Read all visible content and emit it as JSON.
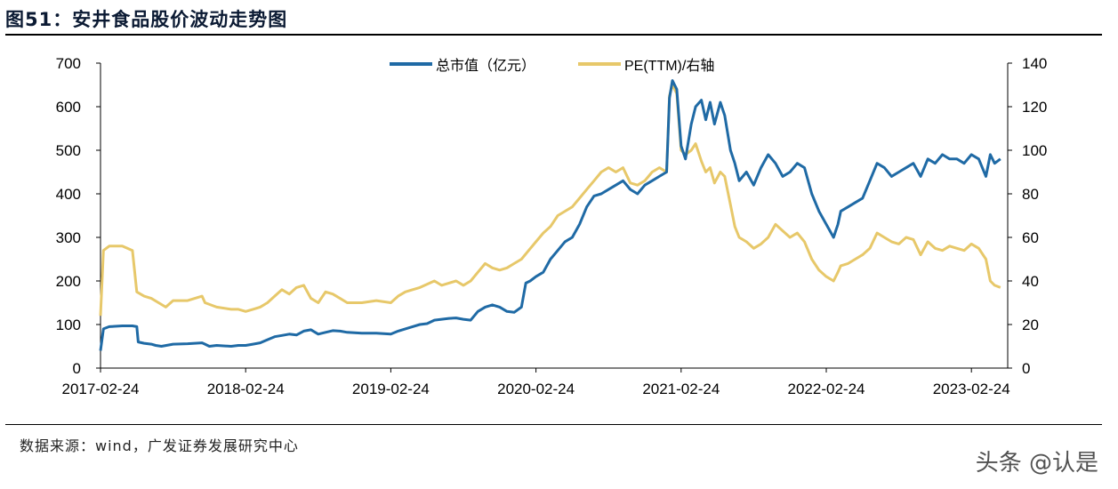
{
  "header": {
    "title": "图51：安井食品股价波动走势图"
  },
  "footer": {
    "source": "数据来源：wind，广发证券发展研究中心",
    "watermark": "头条 @认是"
  },
  "colors": {
    "market_cap": "#1f6aa5",
    "pe": "#e7c86a"
  },
  "chart_data": {
    "type": "line",
    "title": "",
    "x_tick_labels": [
      "2017-02-24",
      "2018-02-24",
      "2019-02-24",
      "2020-02-24",
      "2021-02-24",
      "2022-02-24",
      "2023-02-24"
    ],
    "x_range": [
      0,
      6.25
    ],
    "y_left": {
      "ticks": [
        "0",
        "100",
        "200",
        "300",
        "400",
        "500",
        "600",
        "700"
      ],
      "range": [
        0,
        700
      ]
    },
    "y_right": {
      "ticks": [
        "0",
        "20",
        "40",
        "60",
        "80",
        "100",
        "120",
        "140"
      ],
      "range": [
        0,
        140
      ]
    },
    "legend_position": "top-center",
    "series": [
      {
        "name": "总市值（亿元）",
        "axis": "left",
        "points": [
          [
            0.0,
            40
          ],
          [
            0.02,
            90
          ],
          [
            0.06,
            95
          ],
          [
            0.15,
            97
          ],
          [
            0.22,
            97
          ],
          [
            0.25,
            95
          ],
          [
            0.26,
            60
          ],
          [
            0.3,
            57
          ],
          [
            0.35,
            55
          ],
          [
            0.38,
            52
          ],
          [
            0.42,
            50
          ],
          [
            0.5,
            55
          ],
          [
            0.6,
            56
          ],
          [
            0.7,
            58
          ],
          [
            0.72,
            55
          ],
          [
            0.75,
            50
          ],
          [
            0.8,
            52
          ],
          [
            0.9,
            50
          ],
          [
            0.95,
            52
          ],
          [
            1.0,
            52
          ],
          [
            1.05,
            55
          ],
          [
            1.1,
            58
          ],
          [
            1.15,
            65
          ],
          [
            1.2,
            72
          ],
          [
            1.25,
            75
          ],
          [
            1.3,
            78
          ],
          [
            1.35,
            76
          ],
          [
            1.4,
            85
          ],
          [
            1.45,
            88
          ],
          [
            1.5,
            78
          ],
          [
            1.55,
            82
          ],
          [
            1.6,
            86
          ],
          [
            1.65,
            85
          ],
          [
            1.7,
            82
          ],
          [
            1.8,
            80
          ],
          [
            1.9,
            80
          ],
          [
            2.0,
            78
          ],
          [
            2.05,
            85
          ],
          [
            2.1,
            90
          ],
          [
            2.15,
            95
          ],
          [
            2.2,
            100
          ],
          [
            2.25,
            102
          ],
          [
            2.3,
            110
          ],
          [
            2.35,
            112
          ],
          [
            2.4,
            114
          ],
          [
            2.45,
            115
          ],
          [
            2.5,
            112
          ],
          [
            2.55,
            110
          ],
          [
            2.6,
            130
          ],
          [
            2.65,
            140
          ],
          [
            2.7,
            145
          ],
          [
            2.75,
            140
          ],
          [
            2.8,
            130
          ],
          [
            2.85,
            128
          ],
          [
            2.9,
            140
          ],
          [
            2.93,
            195
          ],
          [
            2.96,
            200
          ],
          [
            3.0,
            210
          ],
          [
            3.05,
            220
          ],
          [
            3.1,
            250
          ],
          [
            3.15,
            270
          ],
          [
            3.2,
            290
          ],
          [
            3.25,
            300
          ],
          [
            3.3,
            330
          ],
          [
            3.35,
            370
          ],
          [
            3.4,
            395
          ],
          [
            3.45,
            400
          ],
          [
            3.5,
            410
          ],
          [
            3.55,
            420
          ],
          [
            3.6,
            430
          ],
          [
            3.65,
            410
          ],
          [
            3.7,
            400
          ],
          [
            3.75,
            420
          ],
          [
            3.8,
            430
          ],
          [
            3.85,
            440
          ],
          [
            3.9,
            450
          ],
          [
            3.92,
            620
          ],
          [
            3.94,
            660
          ],
          [
            3.97,
            640
          ],
          [
            4.0,
            510
          ],
          [
            4.03,
            480
          ],
          [
            4.07,
            560
          ],
          [
            4.1,
            600
          ],
          [
            4.14,
            615
          ],
          [
            4.17,
            570
          ],
          [
            4.2,
            610
          ],
          [
            4.23,
            560
          ],
          [
            4.27,
            610
          ],
          [
            4.3,
            580
          ],
          [
            4.34,
            500
          ],
          [
            4.37,
            470
          ],
          [
            4.4,
            430
          ],
          [
            4.45,
            450
          ],
          [
            4.5,
            420
          ],
          [
            4.55,
            460
          ],
          [
            4.6,
            490
          ],
          [
            4.65,
            470
          ],
          [
            4.7,
            440
          ],
          [
            4.75,
            450
          ],
          [
            4.8,
            470
          ],
          [
            4.85,
            460
          ],
          [
            4.9,
            400
          ],
          [
            4.95,
            360
          ],
          [
            5.0,
            330
          ],
          [
            5.05,
            300
          ],
          [
            5.08,
            330
          ],
          [
            5.1,
            360
          ],
          [
            5.15,
            370
          ],
          [
            5.2,
            380
          ],
          [
            5.25,
            390
          ],
          [
            5.3,
            430
          ],
          [
            5.35,
            470
          ],
          [
            5.4,
            460
          ],
          [
            5.45,
            440
          ],
          [
            5.5,
            450
          ],
          [
            5.55,
            460
          ],
          [
            5.6,
            470
          ],
          [
            5.65,
            440
          ],
          [
            5.7,
            480
          ],
          [
            5.75,
            470
          ],
          [
            5.8,
            490
          ],
          [
            5.85,
            480
          ],
          [
            5.9,
            480
          ],
          [
            5.95,
            470
          ],
          [
            6.0,
            490
          ],
          [
            6.05,
            480
          ],
          [
            6.1,
            440
          ],
          [
            6.13,
            490
          ],
          [
            6.16,
            470
          ],
          [
            6.2,
            480
          ]
        ]
      },
      {
        "name": "PE(TTM)/右轴",
        "axis": "right",
        "points": [
          [
            0.0,
            24
          ],
          [
            0.02,
            54
          ],
          [
            0.06,
            56
          ],
          [
            0.15,
            56
          ],
          [
            0.22,
            54
          ],
          [
            0.25,
            35
          ],
          [
            0.3,
            33
          ],
          [
            0.35,
            32
          ],
          [
            0.4,
            30
          ],
          [
            0.45,
            28
          ],
          [
            0.5,
            31
          ],
          [
            0.6,
            31
          ],
          [
            0.7,
            33
          ],
          [
            0.72,
            30
          ],
          [
            0.8,
            28
          ],
          [
            0.9,
            27
          ],
          [
            0.95,
            27
          ],
          [
            1.0,
            26
          ],
          [
            1.05,
            27
          ],
          [
            1.1,
            28
          ],
          [
            1.15,
            30
          ],
          [
            1.2,
            33
          ],
          [
            1.25,
            36
          ],
          [
            1.3,
            34
          ],
          [
            1.35,
            37
          ],
          [
            1.4,
            38
          ],
          [
            1.45,
            32
          ],
          [
            1.5,
            30
          ],
          [
            1.55,
            35
          ],
          [
            1.6,
            34
          ],
          [
            1.65,
            32
          ],
          [
            1.7,
            30
          ],
          [
            1.8,
            30
          ],
          [
            1.9,
            31
          ],
          [
            2.0,
            30
          ],
          [
            2.05,
            33
          ],
          [
            2.1,
            35
          ],
          [
            2.15,
            36
          ],
          [
            2.2,
            37
          ],
          [
            2.3,
            40
          ],
          [
            2.35,
            38
          ],
          [
            2.4,
            39
          ],
          [
            2.45,
            40
          ],
          [
            2.5,
            38
          ],
          [
            2.55,
            40
          ],
          [
            2.6,
            44
          ],
          [
            2.65,
            48
          ],
          [
            2.7,
            46
          ],
          [
            2.75,
            45
          ],
          [
            2.8,
            46
          ],
          [
            2.85,
            48
          ],
          [
            2.9,
            50
          ],
          [
            2.95,
            54
          ],
          [
            3.0,
            58
          ],
          [
            3.05,
            62
          ],
          [
            3.1,
            65
          ],
          [
            3.15,
            70
          ],
          [
            3.2,
            72
          ],
          [
            3.25,
            74
          ],
          [
            3.3,
            78
          ],
          [
            3.35,
            82
          ],
          [
            3.4,
            86
          ],
          [
            3.45,
            90
          ],
          [
            3.5,
            92
          ],
          [
            3.55,
            90
          ],
          [
            3.6,
            92
          ],
          [
            3.65,
            85
          ],
          [
            3.7,
            84
          ],
          [
            3.75,
            86
          ],
          [
            3.8,
            90
          ],
          [
            3.85,
            92
          ],
          [
            3.9,
            90
          ],
          [
            3.92,
            125
          ],
          [
            3.94,
            130
          ],
          [
            3.97,
            126
          ],
          [
            4.0,
            100
          ],
          [
            4.03,
            98
          ],
          [
            4.07,
            100
          ],
          [
            4.1,
            103
          ],
          [
            4.14,
            95
          ],
          [
            4.17,
            90
          ],
          [
            4.2,
            92
          ],
          [
            4.23,
            85
          ],
          [
            4.27,
            90
          ],
          [
            4.3,
            88
          ],
          [
            4.34,
            75
          ],
          [
            4.37,
            65
          ],
          [
            4.4,
            60
          ],
          [
            4.45,
            58
          ],
          [
            4.5,
            55
          ],
          [
            4.55,
            57
          ],
          [
            4.6,
            60
          ],
          [
            4.65,
            66
          ],
          [
            4.7,
            63
          ],
          [
            4.75,
            60
          ],
          [
            4.8,
            62
          ],
          [
            4.85,
            58
          ],
          [
            4.9,
            50
          ],
          [
            4.95,
            45
          ],
          [
            5.0,
            42
          ],
          [
            5.05,
            40
          ],
          [
            5.08,
            44
          ],
          [
            5.1,
            47
          ],
          [
            5.15,
            48
          ],
          [
            5.2,
            50
          ],
          [
            5.25,
            52
          ],
          [
            5.3,
            55
          ],
          [
            5.35,
            62
          ],
          [
            5.4,
            60
          ],
          [
            5.45,
            58
          ],
          [
            5.5,
            57
          ],
          [
            5.55,
            60
          ],
          [
            5.6,
            59
          ],
          [
            5.65,
            52
          ],
          [
            5.7,
            58
          ],
          [
            5.75,
            55
          ],
          [
            5.8,
            54
          ],
          [
            5.85,
            56
          ],
          [
            5.9,
            55
          ],
          [
            5.95,
            54
          ],
          [
            6.0,
            57
          ],
          [
            6.05,
            55
          ],
          [
            6.1,
            50
          ],
          [
            6.13,
            40
          ],
          [
            6.16,
            38
          ],
          [
            6.2,
            37
          ]
        ]
      }
    ]
  }
}
